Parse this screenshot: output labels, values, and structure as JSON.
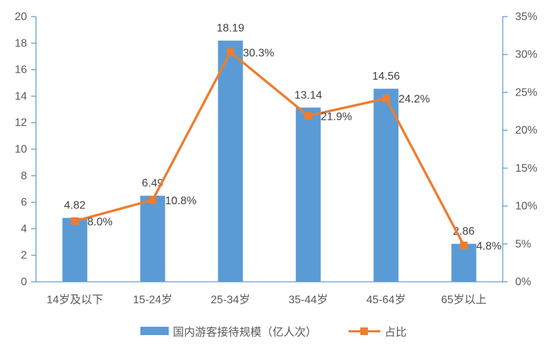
{
  "chart_data": {
    "type": "bar",
    "subtype": "bar+line dual-axis",
    "title": "",
    "categories": [
      "14岁及以下",
      "15-24岁",
      "25-34岁",
      "35-44岁",
      "45-64岁",
      "65岁以上"
    ],
    "series": [
      {
        "name": "国内游客接待规模（亿人次）",
        "type": "bar",
        "axis": "left",
        "values": [
          4.82,
          6.49,
          18.19,
          13.14,
          14.56,
          2.86
        ],
        "labels": [
          "4.82",
          "6.49",
          "18.19",
          "13.14",
          "14.56",
          "2.86"
        ],
        "color": "#5B9BD5"
      },
      {
        "name": "占比",
        "type": "line",
        "axis": "right",
        "values": [
          8.0,
          10.8,
          30.3,
          21.9,
          24.2,
          4.8
        ],
        "labels": [
          "8.0%",
          "10.8%",
          "30.3%",
          "21.9%",
          "24.2%",
          "4.8%"
        ],
        "color": "#ED7D31",
        "marker": "square"
      }
    ],
    "left_axis": {
      "min": 0,
      "max": 20,
      "step": 2,
      "ticks": [
        "0",
        "2",
        "4",
        "6",
        "8",
        "10",
        "12",
        "14",
        "16",
        "18",
        "20"
      ]
    },
    "right_axis": {
      "min": 0,
      "max": 35,
      "step": 5,
      "ticks": [
        "0%",
        "5%",
        "10%",
        "15%",
        "20%",
        "25%",
        "30%",
        "35%"
      ]
    },
    "grid": false,
    "legend_position": "bottom",
    "colors": {
      "bar": "#5B9BD5",
      "line": "#ED7D31",
      "axis_line": "#5B9BD5",
      "tick_label": "#595959",
      "data_label": "#404040",
      "background": "#FFFFFF"
    }
  }
}
